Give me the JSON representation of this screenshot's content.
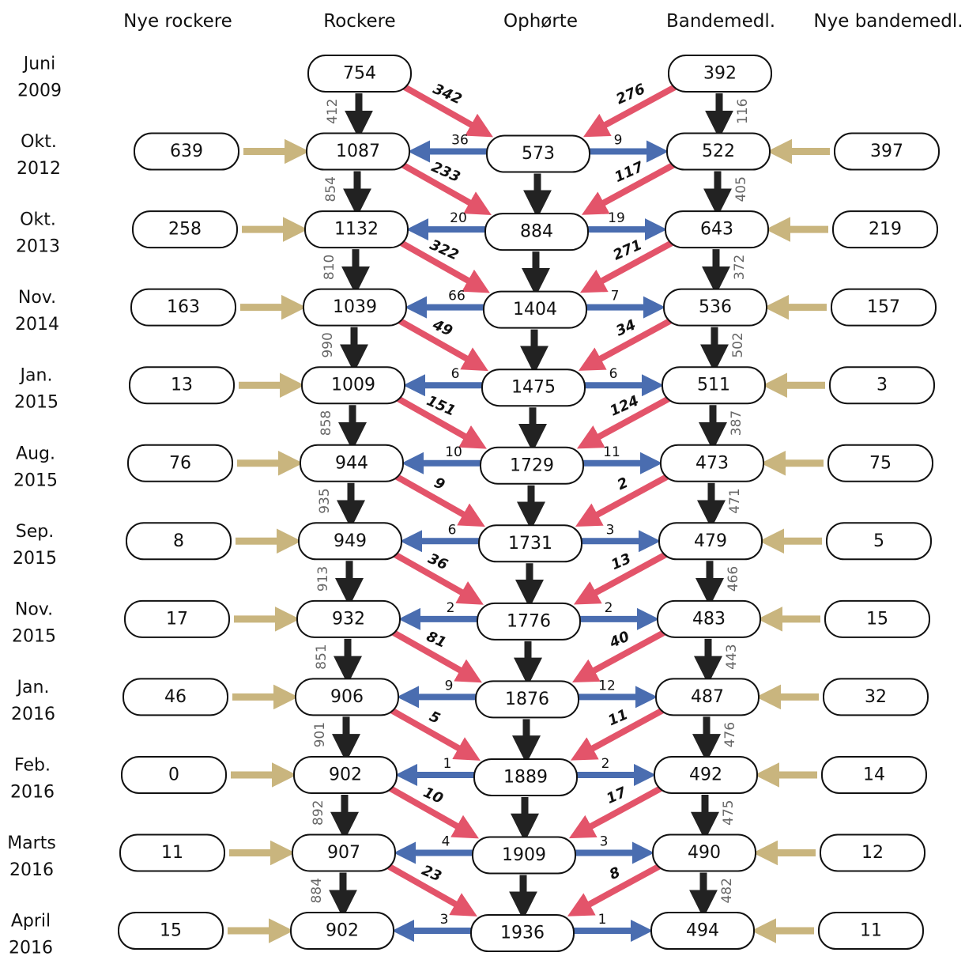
{
  "columns": [
    "Nye rockere",
    "Rockere",
    "Ophørte",
    "Bandemedl.",
    "Nye bandemedl."
  ],
  "colors": {
    "node_stroke": "#111111",
    "down_arrow": "#222222",
    "blue_arrow": "#4a6db0",
    "red_arrow": "#e3546a",
    "tan_arrow": "#c9b57e"
  },
  "rows": [
    {
      "date": [
        "Juni",
        "2009"
      ],
      "nye_rockere": "",
      "rockere": "754",
      "ophorte": "",
      "bande": "392",
      "nye_bande": ""
    },
    {
      "date": [
        "Okt.",
        "2012"
      ],
      "nye_rockere": "639",
      "rockere": "1087",
      "ophorte": "573",
      "bande": "522",
      "nye_bande": "397"
    },
    {
      "date": [
        "Okt.",
        "2013"
      ],
      "nye_rockere": "258",
      "rockere": "1132",
      "ophorte": "884",
      "bande": "643",
      "nye_bande": "219"
    },
    {
      "date": [
        "Nov.",
        "2014"
      ],
      "nye_rockere": "163",
      "rockere": "1039",
      "ophorte": "1404",
      "bande": "536",
      "nye_bande": "157"
    },
    {
      "date": [
        "Jan.",
        "2015"
      ],
      "nye_rockere": "13",
      "rockere": "1009",
      "ophorte": "1475",
      "bande": "511",
      "nye_bande": "3"
    },
    {
      "date": [
        "Aug.",
        "2015"
      ],
      "nye_rockere": "76",
      "rockere": "944",
      "ophorte": "1729",
      "bande": "473",
      "nye_bande": "75"
    },
    {
      "date": [
        "Sep.",
        "2015"
      ],
      "nye_rockere": "8",
      "rockere": "949",
      "ophorte": "1731",
      "bande": "479",
      "nye_bande": "5"
    },
    {
      "date": [
        "Nov.",
        "2015"
      ],
      "nye_rockere": "17",
      "rockere": "932",
      "ophorte": "1776",
      "bande": "483",
      "nye_bande": "15"
    },
    {
      "date": [
        "Jan.",
        "2016"
      ],
      "nye_rockere": "46",
      "rockere": "906",
      "ophorte": "1876",
      "bande": "487",
      "nye_bande": "32"
    },
    {
      "date": [
        "Feb.",
        "2016"
      ],
      "nye_rockere": "0",
      "rockere": "902",
      "ophorte": "1889",
      "bande": "492",
      "nye_bande": "14"
    },
    {
      "date": [
        "Marts",
        "2016"
      ],
      "nye_rockere": "11",
      "rockere": "907",
      "ophorte": "1909",
      "bande": "490",
      "nye_bande": "12"
    },
    {
      "date": [
        "April",
        "2016"
      ],
      "nye_rockere": "15",
      "rockere": "902",
      "ophorte": "1936",
      "bande": "494",
      "nye_bande": "11"
    }
  ],
  "transitions": [
    {
      "rock_stay": "412",
      "rock_exit": "342",
      "bande_stay": "116",
      "bande_exit": "276",
      "ret_rock": "36",
      "ret_bande": "9"
    },
    {
      "rock_stay": "854",
      "rock_exit": "233",
      "bande_stay": "405",
      "bande_exit": "117",
      "ret_rock": "20",
      "ret_bande": "19"
    },
    {
      "rock_stay": "810",
      "rock_exit": "322",
      "bande_stay": "372",
      "bande_exit": "271",
      "ret_rock": "66",
      "ret_bande": "7"
    },
    {
      "rock_stay": "990",
      "rock_exit": "49",
      "bande_stay": "502",
      "bande_exit": "34",
      "ret_rock": "6",
      "ret_bande": "6"
    },
    {
      "rock_stay": "858",
      "rock_exit": "151",
      "bande_stay": "387",
      "bande_exit": "124",
      "ret_rock": "10",
      "ret_bande": "11"
    },
    {
      "rock_stay": "935",
      "rock_exit": "9",
      "bande_stay": "471",
      "bande_exit": "2",
      "ret_rock": "6",
      "ret_bande": "3"
    },
    {
      "rock_stay": "913",
      "rock_exit": "36",
      "bande_stay": "466",
      "bande_exit": "13",
      "ret_rock": "2",
      "ret_bande": "2"
    },
    {
      "rock_stay": "851",
      "rock_exit": "81",
      "bande_stay": "443",
      "bande_exit": "40",
      "ret_rock": "9",
      "ret_bande": "12"
    },
    {
      "rock_stay": "901",
      "rock_exit": "5",
      "bande_stay": "476",
      "bande_exit": "11",
      "ret_rock": "1",
      "ret_bande": "2"
    },
    {
      "rock_stay": "892",
      "rock_exit": "10",
      "bande_stay": "475",
      "bande_exit": "17",
      "ret_rock": "4",
      "ret_bande": "3"
    },
    {
      "rock_stay": "884",
      "rock_exit": "23",
      "bande_stay": "482",
      "bande_exit": "8",
      "ret_rock": "3",
      "ret_bande": "1"
    }
  ]
}
